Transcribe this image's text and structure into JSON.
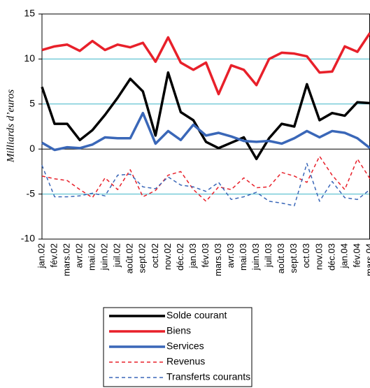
{
  "chart_data": {
    "type": "line",
    "y_label": "Milliards d’euros",
    "categories": [
      "jan.02",
      "fév.02",
      "mars.02",
      "avr.02",
      "mai.02",
      "juin.02",
      "juil.02",
      "août.02",
      "sept.02",
      "oct.02",
      "nov.02",
      "déc.02",
      "jan.03",
      "fév.03",
      "mars.03",
      "avr.03",
      "mai.03",
      "juin.03",
      "juil.03",
      "août.03",
      "sept.03",
      "oct.03",
      "nov.03",
      "déc.03",
      "jan.04",
      "fév.04",
      "mars.04"
    ],
    "series": [
      {
        "name": "Solde courant",
        "color": "#000000",
        "style": "solid",
        "values": [
          6.9,
          2.8,
          2.8,
          1.0,
          2.1,
          3.8,
          5.7,
          7.8,
          6.4,
          1.5,
          8.5,
          4.1,
          3.2,
          0.8,
          0.1,
          0.7,
          1.3,
          -1.1,
          1.2,
          2.8,
          2.5,
          7.2,
          3.2,
          4.0,
          3.7,
          5.2,
          5.1
        ]
      },
      {
        "name": "Biens",
        "color": "#e8202a",
        "style": "solid",
        "values": [
          11.0,
          11.4,
          11.6,
          10.9,
          12.0,
          11.0,
          11.6,
          11.3,
          11.8,
          9.7,
          12.4,
          9.6,
          8.8,
          9.6,
          6.1,
          9.3,
          8.8,
          7.1,
          10.0,
          10.7,
          10.6,
          10.3,
          8.5,
          8.6,
          11.4,
          10.8,
          12.9
        ]
      },
      {
        "name": "Services",
        "color": "#3a67b8",
        "style": "solid",
        "values": [
          0.7,
          -0.1,
          0.2,
          0.1,
          0.5,
          1.3,
          1.2,
          1.2,
          4.0,
          0.6,
          2.0,
          1.0,
          2.7,
          1.5,
          1.8,
          1.4,
          0.9,
          0.8,
          0.9,
          0.6,
          1.2,
          2.0,
          1.3,
          2.0,
          1.8,
          1.2,
          0.1
        ]
      },
      {
        "name": "Revenus",
        "color": "#e8202a",
        "style": "dashed",
        "values": [
          -3.0,
          -3.3,
          -3.5,
          -4.5,
          -5.4,
          -3.2,
          -4.5,
          -2.3,
          -5.3,
          -4.6,
          -2.9,
          -2.5,
          -4.5,
          -5.8,
          -4.2,
          -4.5,
          -3.2,
          -4.3,
          -4.2,
          -2.6,
          -3.0,
          -3.7,
          -0.8,
          -2.9,
          -4.5,
          -1.1,
          -3.3
        ]
      },
      {
        "name": "Transferts courants",
        "color": "#3a67b8",
        "style": "dashed",
        "values": [
          -1.8,
          -5.3,
          -5.3,
          -5.2,
          -4.9,
          -5.2,
          -2.9,
          -2.8,
          -4.2,
          -4.4,
          -3.1,
          -4.0,
          -4.2,
          -4.7,
          -3.7,
          -5.6,
          -5.3,
          -4.8,
          -5.8,
          -6.0,
          -6.3,
          -1.6,
          -5.8,
          -3.6,
          -5.4,
          -5.6,
          -4.5
        ]
      }
    ],
    "ylim": [
      -10,
      15
    ],
    "yticks": [
      -10,
      -5,
      0,
      5,
      10,
      15
    ],
    "grid": true,
    "grid_color": "#3fb6c8",
    "legend": "bottom"
  }
}
